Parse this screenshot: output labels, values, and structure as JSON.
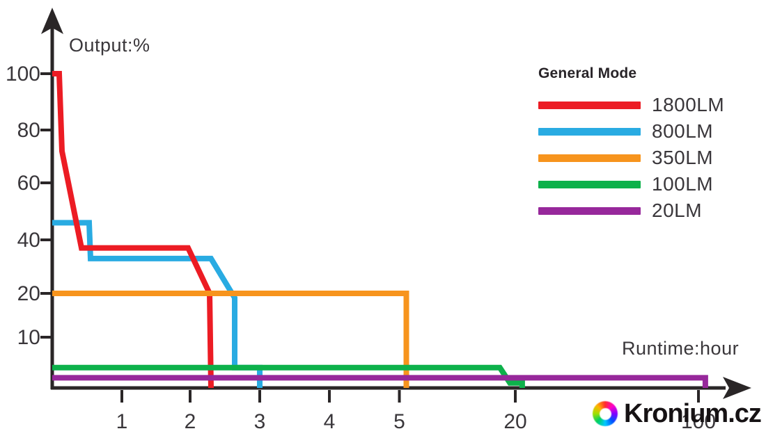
{
  "chart_data": {
    "type": "line",
    "title": "",
    "legend_title": "General Mode",
    "xlabel": "Runtime:hour",
    "ylabel": "Output:%",
    "x_ticks": [
      1,
      2,
      3,
      4,
      5,
      20,
      100
    ],
    "y_ticks": [
      100,
      80,
      60,
      40,
      20,
      10
    ],
    "x_axis_note": "non-linear: 0-5h expanded, 5-100h compressed",
    "ylim": [
      0,
      100
    ],
    "grid": false,
    "legend_position": "upper right",
    "series": [
      {
        "name": "1800LM",
        "color": "#ec1c24",
        "points": [
          [
            0,
            100
          ],
          [
            0.1,
            100
          ],
          [
            0.14,
            72
          ],
          [
            0.42,
            37
          ],
          [
            1.97,
            37
          ],
          [
            2.28,
            20
          ],
          [
            2.3,
            0
          ]
        ]
      },
      {
        "name": "800LM",
        "color": "#29abe2",
        "points": [
          [
            0,
            46
          ],
          [
            0.53,
            46
          ],
          [
            0.55,
            33
          ],
          [
            2.3,
            33
          ],
          [
            2.64,
            19
          ],
          [
            2.64,
            4
          ],
          [
            3,
            4
          ],
          [
            3,
            0
          ]
        ]
      },
      {
        "name": "350LM",
        "color": "#f7941d",
        "points": [
          [
            0,
            20
          ],
          [
            5.9,
            20
          ],
          [
            5.9,
            0
          ]
        ]
      },
      {
        "name": "100LM",
        "color": "#0db14b",
        "points": [
          [
            0,
            4
          ],
          [
            18,
            4
          ],
          [
            19.3,
            1
          ],
          [
            23,
            1
          ],
          [
            23,
            0
          ]
        ]
      },
      {
        "name": "20LM",
        "color": "#97289b",
        "points": [
          [
            0,
            2
          ],
          [
            103,
            2
          ],
          [
            103,
            0
          ]
        ]
      }
    ],
    "draw_order": [
      1,
      0,
      2,
      3,
      4
    ]
  },
  "watermark": {
    "text": "Kronium.cz"
  },
  "colors": {
    "axis": "#2a2627",
    "tick_text": "#3a373b"
  }
}
